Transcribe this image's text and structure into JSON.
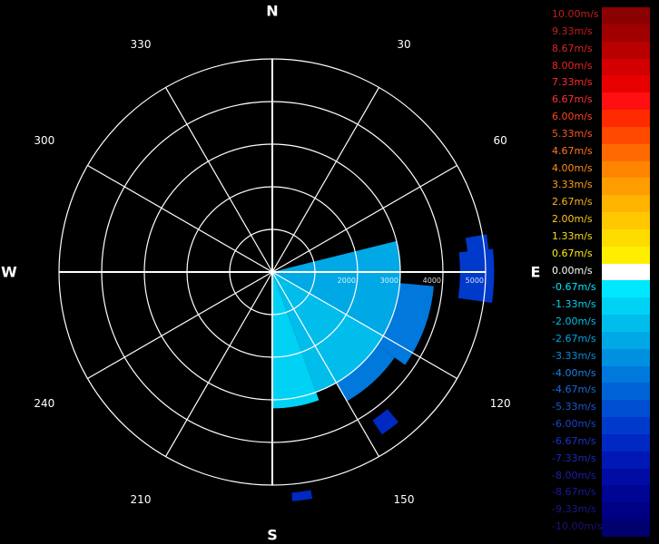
{
  "chart_data": {
    "type": "heatmap",
    "polar": true,
    "cardinal_labels": {
      "N": "N",
      "E": "E",
      "S": "S",
      "W": "W"
    },
    "angle_labels": [
      {
        "deg": 30,
        "text": "30"
      },
      {
        "deg": 60,
        "text": "60"
      },
      {
        "deg": 120,
        "text": "120"
      },
      {
        "deg": 150,
        "text": "150"
      },
      {
        "deg": 210,
        "text": "210"
      },
      {
        "deg": 240,
        "text": "240"
      },
      {
        "deg": 300,
        "text": "300"
      },
      {
        "deg": 330,
        "text": "330"
      }
    ],
    "range_rings": [
      1000,
      2000,
      3000,
      4000,
      5000
    ],
    "range_labels": [
      "2000",
      "3000",
      "4000",
      "5000"
    ],
    "max_range": 5000,
    "sectors": [
      {
        "az": [
          76,
          90
        ],
        "range": [
          0,
          3000
        ],
        "value": -2.67
      },
      {
        "az": [
          90,
          120
        ],
        "range": [
          0,
          3000
        ],
        "value": -2.67
      },
      {
        "az": [
          120,
          160
        ],
        "range": [
          0,
          3000
        ],
        "value": -2.0
      },
      {
        "az": [
          160,
          180
        ],
        "range": [
          0,
          3200
        ],
        "value": -1.33
      },
      {
        "az": [
          95,
          125
        ],
        "range": [
          3000,
          3800
        ],
        "value": -4.0
      },
      {
        "az": [
          125,
          150
        ],
        "range": [
          3000,
          3500
        ],
        "value": -4.0
      },
      {
        "az": [
          84,
          98
        ],
        "range": [
          4400,
          5200
        ],
        "value": -6.0
      },
      {
        "az": [
          80,
          86
        ],
        "range": [
          4600,
          5100
        ],
        "value": -6.0
      },
      {
        "az": [
          140,
          146
        ],
        "range": [
          4200,
          4600
        ],
        "value": -6.67
      },
      {
        "az": [
          170,
          175
        ],
        "range": [
          5200,
          5400
        ],
        "value": -6.67
      }
    ],
    "colorbar": [
      {
        "label": "10.00m/s",
        "color": "#8b0000",
        "text_color": "#cc1a1a"
      },
      {
        "label": "9.33m/s",
        "color": "#a00000",
        "text_color": "#cc1a1a"
      },
      {
        "label": "8.67m/s",
        "color": "#b80000",
        "text_color": "#dd2222"
      },
      {
        "label": "8.00m/s",
        "color": "#d20000",
        "text_color": "#ee2222"
      },
      {
        "label": "7.33m/s",
        "color": "#e80000",
        "text_color": "#ff2a2a"
      },
      {
        "label": "6.67m/s",
        "color": "#ff0f0f",
        "text_color": "#ff3333"
      },
      {
        "label": "6.00m/s",
        "color": "#ff2a00",
        "text_color": "#ff4422"
      },
      {
        "label": "5.33m/s",
        "color": "#ff4a00",
        "text_color": "#ff5522"
      },
      {
        "label": "4.67m/s",
        "color": "#ff6a00",
        "text_color": "#ff7722"
      },
      {
        "label": "4.00m/s",
        "color": "#ff8400",
        "text_color": "#ff8c1a"
      },
      {
        "label": "3.33m/s",
        "color": "#ff9d00",
        "text_color": "#ffa01a"
      },
      {
        "label": "2.67m/s",
        "color": "#ffb400",
        "text_color": "#ffb41a"
      },
      {
        "label": "2.00m/s",
        "color": "#ffc800",
        "text_color": "#ffc81a"
      },
      {
        "label": "1.33m/s",
        "color": "#ffdc00",
        "text_color": "#ffdc1a"
      },
      {
        "label": "0.67m/s",
        "color": "#ffee00",
        "text_color": "#ffee1a"
      },
      {
        "label": "0.00m/s",
        "color": "#ffffff",
        "text_color": "#ffffff"
      },
      {
        "label": "-0.67m/s",
        "color": "#00e8ff",
        "text_color": "#00e8ff"
      },
      {
        "label": "-1.33m/s",
        "color": "#00d2f5",
        "text_color": "#00d2f5"
      },
      {
        "label": "-2.00m/s",
        "color": "#00bdeb",
        "text_color": "#00bdeb"
      },
      {
        "label": "-2.67m/s",
        "color": "#00a8e6",
        "text_color": "#00a8e6"
      },
      {
        "label": "-3.33m/s",
        "color": "#0090e0",
        "text_color": "#0090e0"
      },
      {
        "label": "-4.00m/s",
        "color": "#0078dc",
        "text_color": "#1a80e0"
      },
      {
        "label": "-4.67m/s",
        "color": "#0063d8",
        "text_color": "#1a6ad8"
      },
      {
        "label": "-5.33m/s",
        "color": "#004ed2",
        "text_color": "#1a58d2"
      },
      {
        "label": "-6.00m/s",
        "color": "#003acb",
        "text_color": "#1a45cc"
      },
      {
        "label": "-6.67m/s",
        "color": "#0028c2",
        "text_color": "#1a35c4"
      },
      {
        "label": "-7.33m/s",
        "color": "#0018b4",
        "text_color": "#1a28b8"
      },
      {
        "label": "-8.00m/s",
        "color": "#000ca4",
        "text_color": "#1a1eaa"
      },
      {
        "label": "-8.67m/s",
        "color": "#000594",
        "text_color": "#1a189c"
      },
      {
        "label": "-9.33m/s",
        "color": "#000084",
        "text_color": "#1a168c"
      },
      {
        "label": "-10.00m/s",
        "color": "#00006e",
        "text_color": "#1a1478"
      }
    ]
  }
}
